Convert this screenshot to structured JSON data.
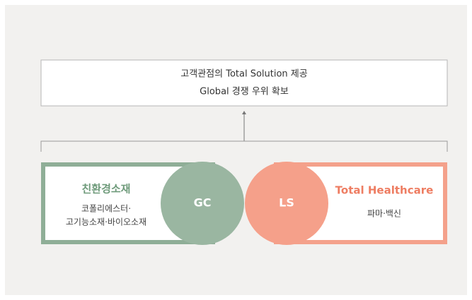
{
  "top_box": {
    "lines": [
      "고객관점의 Total Solution 제공",
      "Global 경쟁 우위 확보"
    ]
  },
  "left": {
    "title": "친환경소재",
    "lines": [
      "코폴리에스터·",
      "고기능소재·바이오소재"
    ],
    "circle": "GC"
  },
  "right": {
    "title": "Total Healthcare",
    "lines": [
      "파마·백신"
    ],
    "circle": "LS"
  }
}
